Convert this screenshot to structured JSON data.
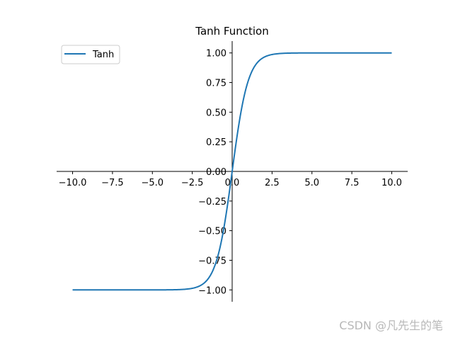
{
  "chart_data": {
    "type": "line",
    "title": "Tanh Function",
    "xlabel": "",
    "ylabel": "",
    "xlim": [
      -11.0,
      11.0
    ],
    "ylim": [
      -1.1,
      1.1
    ],
    "x_ticks": [
      -10.0,
      -7.5,
      -5.0,
      -2.5,
      0.0,
      2.5,
      5.0,
      7.5,
      10.0
    ],
    "x_tick_labels": [
      "−10.0",
      "−7.5",
      "−5.0",
      "−2.5",
      "0.0",
      "2.5",
      "5.0",
      "7.5",
      "10.0"
    ],
    "y_ticks": [
      -1.0,
      -0.75,
      -0.5,
      -0.25,
      0.0,
      0.25,
      0.5,
      0.75,
      1.0
    ],
    "y_tick_labels": [
      "−1.00",
      "−0.75",
      "−0.50",
      "−0.25",
      "0.00",
      "0.25",
      "0.50",
      "0.75",
      "1.00"
    ],
    "grid": false,
    "legend_position": "top-left",
    "spines": "centered",
    "series": [
      {
        "name": "Tanh",
        "color": "#1f77b4",
        "x": [
          -10.0,
          -5.0,
          -3.0,
          -2.5,
          -2.0,
          -1.5,
          -1.0,
          -0.75,
          -0.5,
          -0.25,
          0.0,
          0.25,
          0.5,
          0.75,
          1.0,
          1.5,
          2.0,
          2.5,
          3.0,
          5.0,
          10.0
        ],
        "y": [
          -1.0,
          -0.9999,
          -0.9951,
          -0.9866,
          -0.964,
          -0.9051,
          -0.7616,
          -0.6351,
          -0.4621,
          -0.2449,
          0.0,
          0.2449,
          0.4621,
          0.6351,
          0.7616,
          0.9051,
          0.964,
          0.9866,
          0.9951,
          0.9999,
          1.0
        ]
      }
    ]
  },
  "watermark": "CSDN @凡先生的笔"
}
